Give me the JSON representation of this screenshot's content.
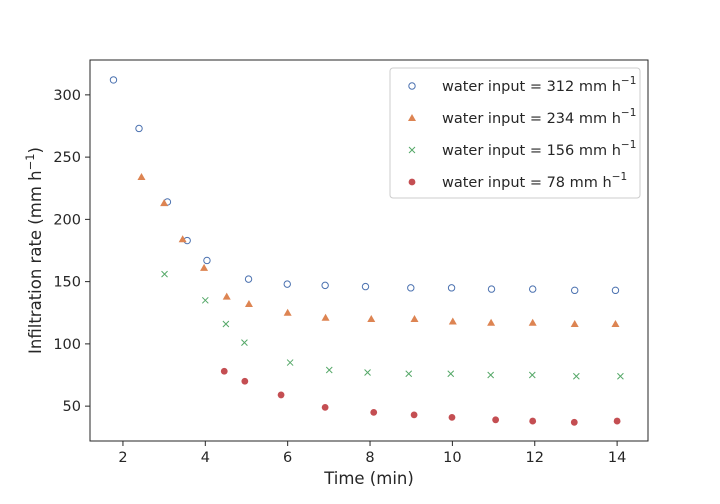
{
  "chart_data": {
    "type": "scatter",
    "xlabel": "Time (min)",
    "ylabel": "Infiltration rate (mm h",
    "ylabel_sup": "−1",
    "ylabel_tail": ")",
    "xlim": [
      1.2,
      14.75
    ],
    "ylim": [
      22,
      328
    ],
    "xticks": [
      2,
      4,
      6,
      8,
      10,
      12,
      14
    ],
    "yticks": [
      50,
      100,
      150,
      200,
      250,
      300
    ],
    "legend_position": "top-right",
    "grid": false,
    "series": [
      {
        "name": "water input = 312 mm h",
        "name_sup": "−1",
        "marker": "circle-open",
        "color": "#4c72b0",
        "x": [
          1.77,
          2.39,
          3.08,
          3.56,
          4.04,
          5.05,
          5.99,
          6.91,
          7.89,
          8.99,
          9.98,
          10.95,
          11.95,
          12.97,
          13.96
        ],
        "y": [
          312,
          273,
          214,
          183,
          167,
          152,
          148,
          147,
          146,
          145,
          145,
          144,
          144,
          143,
          143
        ]
      },
      {
        "name": "water input = 234 mm h",
        "name_sup": "−1",
        "marker": "triangle",
        "color": "#dd8452",
        "x": [
          2.45,
          3.0,
          3.45,
          3.97,
          4.52,
          5.06,
          6.0,
          6.92,
          8.03,
          9.08,
          10.01,
          10.94,
          11.95,
          12.97,
          13.96
        ],
        "y": [
          234,
          213,
          184,
          161,
          138,
          132,
          125,
          121,
          120,
          120,
          118,
          117,
          117,
          116,
          116
        ]
      },
      {
        "name": "water input = 156 mm h",
        "name_sup": "−1",
        "marker": "x",
        "color": "#55a868",
        "x": [
          3.01,
          4.0,
          4.5,
          4.95,
          6.06,
          7.01,
          7.94,
          8.94,
          9.96,
          10.93,
          11.94,
          13.01,
          14.08
        ],
        "y": [
          156,
          135,
          116,
          101,
          85,
          79,
          77,
          76,
          76,
          75,
          75,
          74,
          74
        ]
      },
      {
        "name": "water input = 78 mm h",
        "name_sup": "−1",
        "marker": "circle-filled",
        "color": "#c44e52",
        "x": [
          4.46,
          4.96,
          5.84,
          6.91,
          8.09,
          9.07,
          9.99,
          11.05,
          11.95,
          12.96,
          14.0
        ],
        "y": [
          78,
          70,
          59,
          49,
          45,
          43,
          41,
          39,
          38,
          37,
          38
        ]
      }
    ]
  }
}
